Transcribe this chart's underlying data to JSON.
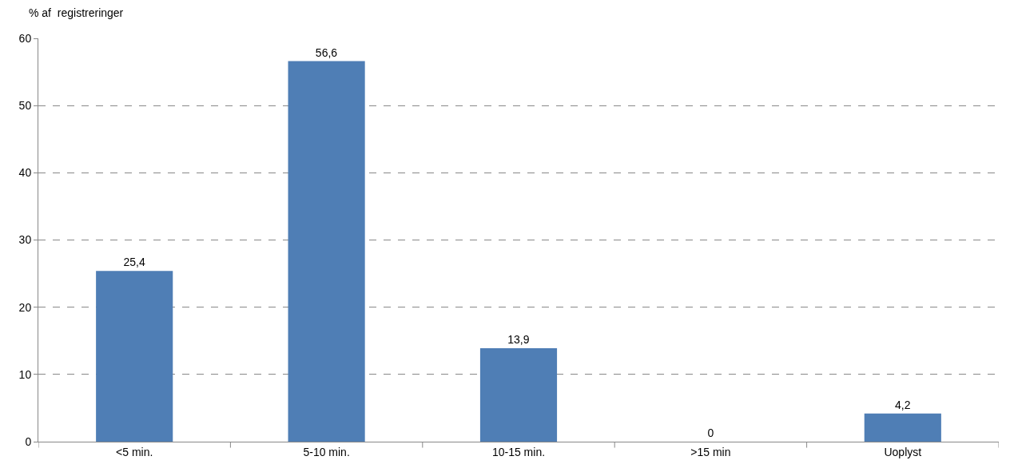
{
  "chart_data": {
    "type": "bar",
    "ylabel": "% af  registreringer",
    "categories": [
      "<5 min.",
      "5-10 min.",
      "10-15 min.",
      ">15 min",
      "Uoplyst"
    ],
    "values": [
      25.4,
      56.6,
      13.9,
      0,
      4.2
    ],
    "value_labels": [
      "25,4",
      "56,6",
      "13,9",
      "0",
      "4,2"
    ],
    "color": "#4f7eb5",
    "ylim": [
      0,
      60
    ],
    "yticks": [
      0,
      10,
      20,
      30,
      40,
      50,
      60
    ],
    "grid": "y",
    "line_style": "dashed"
  }
}
